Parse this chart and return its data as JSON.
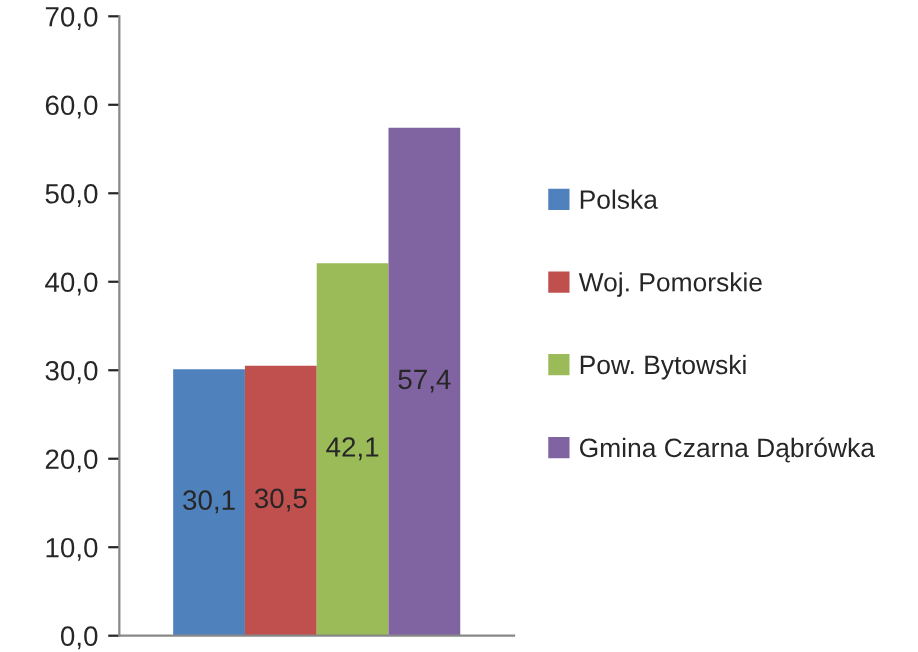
{
  "chart_data": {
    "type": "bar",
    "categories": [
      null
    ],
    "series": [
      {
        "name": "Polska",
        "color": "#4f81bd",
        "values": [
          30.1
        ],
        "value_labels": [
          "30,1"
        ]
      },
      {
        "name": "Woj. Pomorskie",
        "color": "#c0504d",
        "values": [
          30.5
        ],
        "value_labels": [
          "30,5"
        ]
      },
      {
        "name": "Pow. Bytowski",
        "color": "#9bbb59",
        "values": [
          42.1
        ],
        "value_labels": [
          "42,1"
        ]
      },
      {
        "name": "Gmina Czarna Dąbrówka",
        "color": "#8064a2",
        "values": [
          57.4
        ],
        "value_labels": [
          "57,4"
        ]
      }
    ],
    "ylim": [
      0,
      70
    ],
    "yticks": [
      {
        "value": 0,
        "label": "0,0"
      },
      {
        "value": 10,
        "label": "10,0"
      },
      {
        "value": 20,
        "label": "20,0"
      },
      {
        "value": 30,
        "label": "30,0"
      },
      {
        "value": 40,
        "label": "40,0"
      },
      {
        "value": 50,
        "label": "50,0"
      },
      {
        "value": 60,
        "label": "60,0"
      },
      {
        "value": 70,
        "label": "70,0"
      }
    ],
    "grid": false,
    "legend": "right"
  }
}
